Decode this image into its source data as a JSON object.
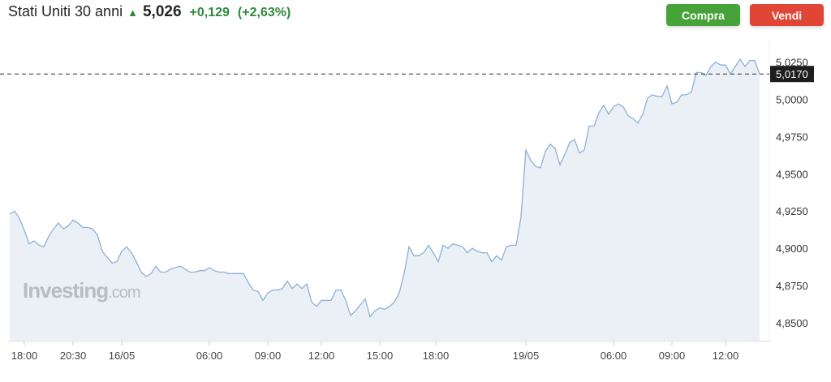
{
  "header": {
    "instrument": "Stati Uniti 30 anni",
    "direction_icon": "arrow-up-icon",
    "price": "5,026",
    "change": "+0,129",
    "change_pct": "(+2,63%)"
  },
  "buttons": {
    "buy": "Compra",
    "sell": "Vendi"
  },
  "watermark": "Investing.com",
  "colors": {
    "line": "#8fb0d6",
    "area": "#eaf0f6",
    "up": "#2e8b3c",
    "buy": "#45a33a",
    "sell": "#e04536"
  },
  "chart_data": {
    "type": "area",
    "title": "",
    "xlabel": "",
    "ylabel": "",
    "ylim": [
      4.838,
      5.034
    ],
    "yticks": [
      "5,0250",
      "5,0000",
      "4,9750",
      "4,9500",
      "4,9250",
      "4,9000",
      "4,8750",
      "4,8500"
    ],
    "ytick_values": [
      5.025,
      5.0,
      4.975,
      4.95,
      4.925,
      4.9,
      4.875,
      4.85
    ],
    "xticks": [
      "18:00",
      "20:30",
      "16/05",
      "06:00",
      "09:00",
      "12:00",
      "15:00",
      "18:00",
      "19/05",
      "06:00",
      "09:00",
      "12:00"
    ],
    "current_value": 5.017,
    "current_label": "5,0170",
    "grid": false,
    "values": [
      4.923,
      4.925,
      4.92,
      4.912,
      4.903,
      4.905,
      4.902,
      4.901,
      4.908,
      4.913,
      4.917,
      4.913,
      4.915,
      4.919,
      4.917,
      4.914,
      4.914,
      4.913,
      4.909,
      4.898,
      4.894,
      4.89,
      4.891,
      4.898,
      4.901,
      4.897,
      4.891,
      4.884,
      4.881,
      4.883,
      4.888,
      4.884,
      4.884,
      4.886,
      4.887,
      4.888,
      4.886,
      4.884,
      4.884,
      4.885,
      4.885,
      4.887,
      4.885,
      4.884,
      4.884,
      4.883,
      4.883,
      4.883,
      4.883,
      4.877,
      4.872,
      4.871,
      4.865,
      4.87,
      4.872,
      4.872,
      4.873,
      4.878,
      4.873,
      4.876,
      4.873,
      4.876,
      4.864,
      4.861,
      4.865,
      4.865,
      4.865,
      4.872,
      4.872,
      4.865,
      4.855,
      4.858,
      4.862,
      4.866,
      4.854,
      4.858,
      4.86,
      4.859,
      4.861,
      4.864,
      4.87,
      4.883,
      4.901,
      4.895,
      4.895,
      4.897,
      4.902,
      4.897,
      4.891,
      4.902,
      4.9,
      4.903,
      4.902,
      4.901,
      4.897,
      4.9,
      4.898,
      4.897,
      4.897,
      4.891,
      4.895,
      4.892,
      4.901,
      4.902,
      4.902,
      4.921,
      4.966,
      4.959,
      4.955,
      4.954,
      4.965,
      4.97,
      4.967,
      4.956,
      4.963,
      4.971,
      4.973,
      4.964,
      4.966,
      4.982,
      4.982,
      4.991,
      4.996,
      4.99,
      4.995,
      4.997,
      4.995,
      4.989,
      4.987,
      4.984,
      4.99,
      5.001,
      5.003,
      5.002,
      5.002,
      5.009,
      4.997,
      4.998,
      5.003,
      5.003,
      5.005,
      5.018,
      5.018,
      5.016,
      5.022,
      5.025,
      5.023,
      5.023,
      5.017,
      5.022,
      5.027,
      5.022,
      5.026,
      5.026,
      5.017
    ]
  }
}
